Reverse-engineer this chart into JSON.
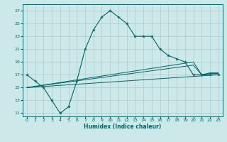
{
  "xlabel": "Humidex (Indice chaleur)",
  "bg_color": "#cce8e8",
  "grid_color": "#aacccc",
  "line_color": "#006666",
  "xlim": [
    -0.5,
    23.5
  ],
  "ylim": [
    10.5,
    28.0
  ],
  "xticks": [
    0,
    1,
    2,
    3,
    4,
    5,
    6,
    7,
    8,
    9,
    10,
    11,
    12,
    13,
    14,
    15,
    16,
    17,
    18,
    19,
    20,
    21,
    22,
    23
  ],
  "yticks": [
    11,
    13,
    15,
    17,
    19,
    21,
    23,
    25,
    27
  ],
  "main_x": [
    0,
    1,
    2,
    3,
    4,
    5,
    6,
    7,
    8,
    9,
    10,
    11,
    12,
    13,
    14,
    15,
    16,
    17,
    18,
    19,
    20,
    21,
    22,
    23
  ],
  "main_y": [
    17,
    16,
    15,
    13,
    11,
    12,
    16,
    21,
    24,
    26,
    27,
    26,
    25,
    23,
    23,
    23,
    21,
    20,
    19.5,
    19,
    17,
    17,
    17,
    17
  ],
  "trend1_x": [
    0,
    23
  ],
  "trend1_y": [
    15,
    17.0
  ],
  "trend2_x": [
    0,
    20,
    21,
    22,
    23
  ],
  "trend2_y": [
    15,
    19.0,
    17.0,
    17.3,
    17.3
  ],
  "trend3_x": [
    0,
    20,
    21,
    22,
    23
  ],
  "trend3_y": [
    15,
    18.5,
    17.0,
    17.2,
    17.2
  ]
}
